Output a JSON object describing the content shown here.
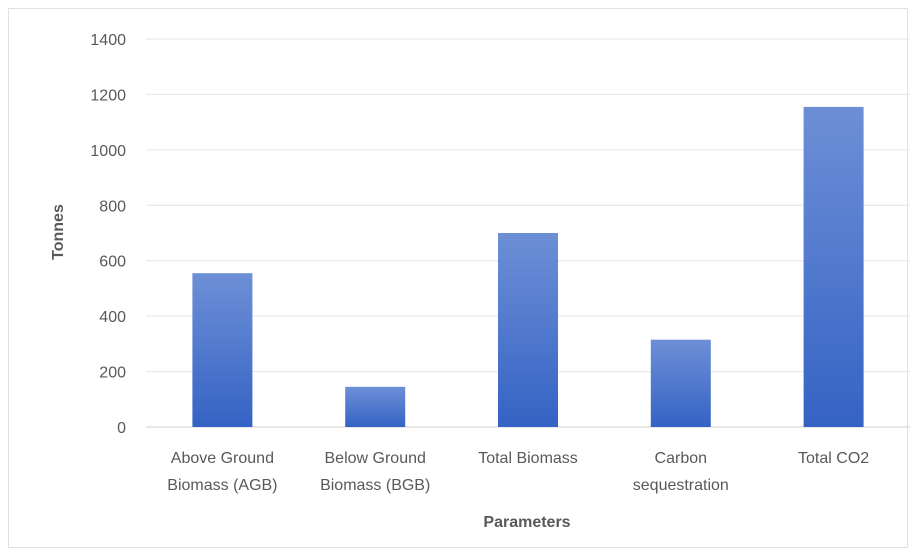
{
  "chart_data": {
    "type": "bar",
    "title": "",
    "xlabel": "Parameters",
    "ylabel": "Tonnes",
    "ylim": [
      0,
      1400
    ],
    "yticks": [
      "0",
      "200",
      "400",
      "600",
      "800",
      "1000",
      "1200",
      "1400"
    ],
    "grid": true,
    "categories": [
      [
        "Above Ground",
        "Biomass (AGB)"
      ],
      [
        "Below Ground",
        "Biomass (BGB)"
      ],
      [
        "Total Biomass"
      ],
      [
        "Carbon",
        "sequestration"
      ],
      [
        "Total CO2"
      ]
    ],
    "values": [
      555,
      145,
      700,
      315,
      1155
    ],
    "colors": {
      "bar_top": "#6d8fd6",
      "bar_bottom": "#3563c4",
      "grid": "#e6e6e6"
    }
  }
}
